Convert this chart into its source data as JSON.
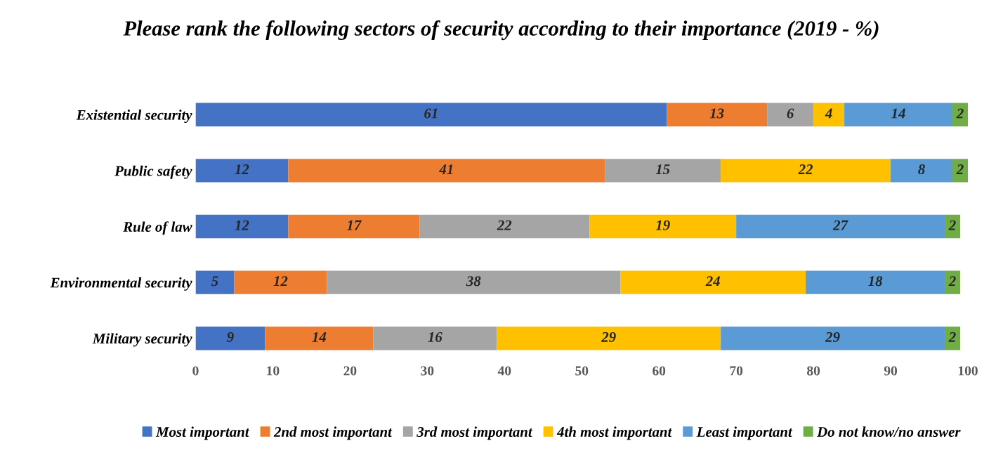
{
  "chart_data": {
    "type": "bar",
    "orientation": "horizontal",
    "stacked": true,
    "title": "Please rank the following sectors of security according to their importance (2019 - %)",
    "categories": [
      "Existential security",
      "Public safety",
      "Rule of law",
      "Environmental security",
      "Military security"
    ],
    "series": [
      {
        "name": "Most important",
        "color": "#4472c4",
        "values": [
          61,
          12,
          12,
          5,
          9
        ]
      },
      {
        "name": "2nd most important",
        "color": "#ed7d31",
        "values": [
          13,
          41,
          17,
          12,
          14
        ]
      },
      {
        "name": "3rd most important",
        "color": "#a5a5a5",
        "values": [
          6,
          15,
          22,
          38,
          16
        ]
      },
      {
        "name": "4th most important",
        "color": "#ffc000",
        "values": [
          4,
          22,
          19,
          24,
          29
        ]
      },
      {
        "name": "Least important",
        "color": "#5b9bd5",
        "values": [
          14,
          8,
          27,
          18,
          29
        ]
      },
      {
        "name": "Do not know/no answer",
        "color": "#70ad47",
        "values": [
          2,
          2,
          2,
          2,
          2
        ]
      }
    ],
    "xlim": [
      0,
      100
    ],
    "xticks": [
      0,
      10,
      20,
      30,
      40,
      50,
      60,
      70,
      80,
      90,
      100
    ],
    "data_labels": true,
    "legend": "bottom",
    "grid": false
  }
}
